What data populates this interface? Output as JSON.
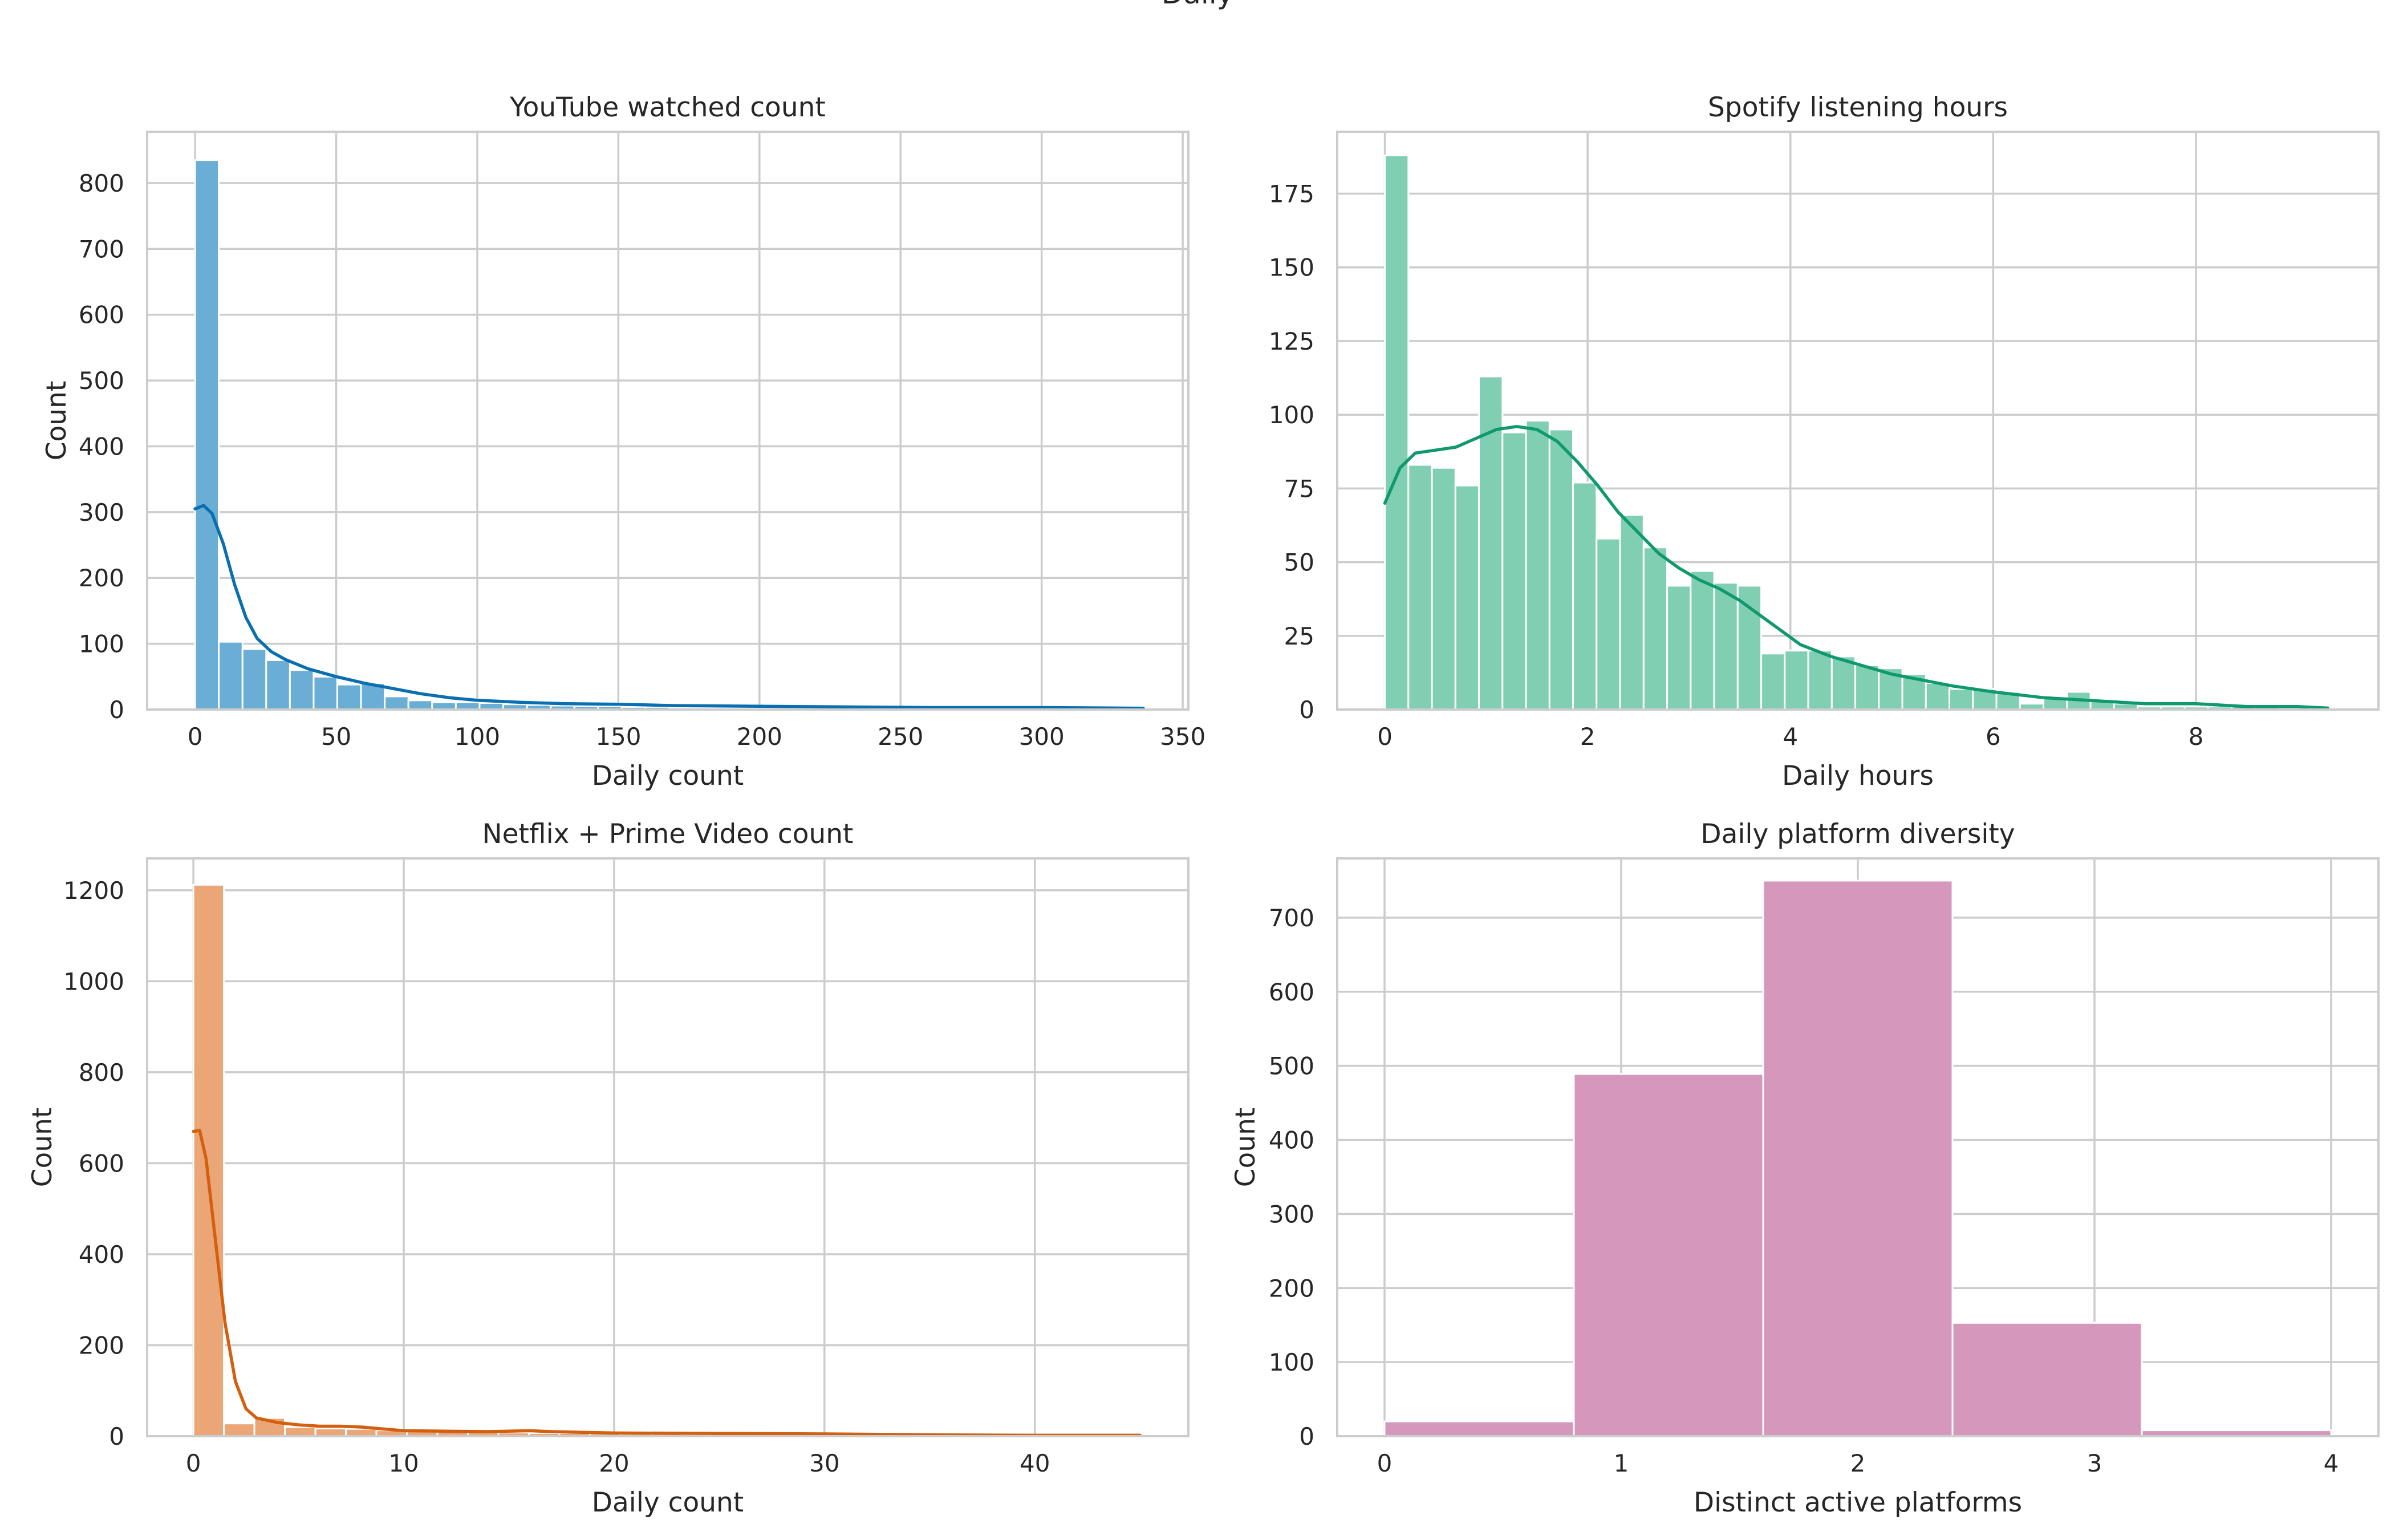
{
  "figure": {
    "suptitle": "Daily"
  },
  "chart_data": [
    {
      "type": "bar",
      "title": "YouTube watched count",
      "xlabel": "Daily count",
      "ylabel": "Count",
      "xlim": [
        -17,
        352
      ],
      "ylim": [
        0,
        878
      ],
      "xticks": [
        0,
        50,
        100,
        150,
        200,
        250,
        300,
        350
      ],
      "yticks": [
        0,
        100,
        200,
        300,
        400,
        500,
        600,
        700,
        800
      ],
      "bin_width": 8.4,
      "bin_start": 0,
      "counts": [
        835,
        103,
        92,
        75,
        60,
        50,
        38,
        40,
        20,
        14,
        11,
        11,
        10,
        8,
        7,
        6,
        5,
        5,
        4,
        4,
        3,
        3,
        3,
        3,
        3,
        3,
        2,
        2,
        2,
        2,
        2,
        2,
        2,
        1,
        1,
        1,
        1,
        1,
        1,
        1
      ],
      "kde": [
        [
          0,
          305
        ],
        [
          3,
          310
        ],
        [
          6,
          298
        ],
        [
          10,
          252
        ],
        [
          14,
          190
        ],
        [
          18,
          140
        ],
        [
          22,
          108
        ],
        [
          27,
          88
        ],
        [
          32,
          76
        ],
        [
          40,
          62
        ],
        [
          50,
          50
        ],
        [
          60,
          40
        ],
        [
          70,
          32
        ],
        [
          80,
          24
        ],
        [
          90,
          18
        ],
        [
          100,
          14
        ],
        [
          115,
          11
        ],
        [
          130,
          9
        ],
        [
          150,
          8
        ],
        [
          170,
          6
        ],
        [
          200,
          5
        ],
        [
          230,
          4
        ],
        [
          260,
          3
        ],
        [
          300,
          3
        ],
        [
          336,
          2
        ]
      ],
      "color": "#6aaed6",
      "line_color": "#0a6fb0"
    },
    {
      "type": "bar",
      "title": "Spotify listening hours",
      "xlabel": "Daily hours",
      "ylabel": "Count",
      "xlim": [
        -0.47,
        9.8
      ],
      "ylim": [
        0,
        196
      ],
      "xticks": [
        0,
        2,
        4,
        6,
        8
      ],
      "yticks": [
        0,
        25,
        50,
        75,
        100,
        125,
        150,
        175
      ],
      "bin_width": 0.232,
      "bin_start": 0,
      "counts": [
        188,
        83,
        82,
        76,
        113,
        94,
        98,
        95,
        77,
        58,
        66,
        55,
        42,
        47,
        43,
        42,
        19,
        20,
        20,
        18,
        15,
        14,
        12,
        9,
        7,
        7,
        6,
        2,
        4,
        6,
        3,
        2,
        1,
        1,
        1,
        1,
        1,
        1,
        0,
        0
      ],
      "kde": [
        [
          0,
          70
        ],
        [
          0.15,
          82
        ],
        [
          0.3,
          87
        ],
        [
          0.5,
          88
        ],
        [
          0.7,
          89
        ],
        [
          0.9,
          92
        ],
        [
          1.1,
          95
        ],
        [
          1.3,
          96
        ],
        [
          1.5,
          95
        ],
        [
          1.7,
          91
        ],
        [
          1.9,
          84
        ],
        [
          2.1,
          76
        ],
        [
          2.3,
          67
        ],
        [
          2.5,
          60
        ],
        [
          2.7,
          53
        ],
        [
          2.9,
          48
        ],
        [
          3.1,
          44
        ],
        [
          3.3,
          41
        ],
        [
          3.5,
          37
        ],
        [
          3.7,
          32
        ],
        [
          3.9,
          27
        ],
        [
          4.1,
          22
        ],
        [
          4.4,
          18
        ],
        [
          4.7,
          15
        ],
        [
          5.0,
          12
        ],
        [
          5.3,
          10
        ],
        [
          5.6,
          8
        ],
        [
          6.0,
          6
        ],
        [
          6.5,
          4
        ],
        [
          7.0,
          3
        ],
        [
          7.5,
          2
        ],
        [
          8.0,
          2
        ],
        [
          8.5,
          1
        ],
        [
          9.0,
          1
        ],
        [
          9.3,
          0.5
        ]
      ],
      "color": "#80cfb2",
      "line_color": "#10996e"
    },
    {
      "type": "bar",
      "title": "Netflix + Prime Video count",
      "xlabel": "Daily count",
      "ylabel": "Count",
      "xlim": [
        -2.2,
        47.3
      ],
      "ylim": [
        0,
        1270
      ],
      "xticks": [
        0,
        10,
        20,
        30,
        40
      ],
      "yticks": [
        0,
        200,
        400,
        600,
        800,
        1000,
        1200
      ],
      "bin_width": 1.45,
      "bin_start": 0,
      "counts": [
        1212,
        28,
        40,
        20,
        17,
        16,
        13,
        11,
        10,
        9,
        8,
        7,
        7,
        6,
        5,
        5,
        4,
        4,
        4,
        3,
        3,
        3,
        2,
        2,
        2,
        2,
        2,
        2,
        2,
        2,
        2
      ],
      "kde": [
        [
          0,
          670
        ],
        [
          0.3,
          672
        ],
        [
          0.6,
          610
        ],
        [
          1.0,
          450
        ],
        [
          1.5,
          250
        ],
        [
          2.0,
          120
        ],
        [
          2.5,
          60
        ],
        [
          3.0,
          40
        ],
        [
          4.0,
          30
        ],
        [
          5.0,
          25
        ],
        [
          6.0,
          22
        ],
        [
          7.0,
          22
        ],
        [
          8.0,
          20
        ],
        [
          9.0,
          16
        ],
        [
          10.0,
          12
        ],
        [
          12.0,
          11
        ],
        [
          14.0,
          10
        ],
        [
          16.0,
          12
        ],
        [
          17.0,
          10
        ],
        [
          20.0,
          7
        ],
        [
          25.0,
          6
        ],
        [
          30.0,
          5
        ],
        [
          35.0,
          3
        ],
        [
          40.0,
          2
        ],
        [
          45.0,
          2
        ]
      ],
      "color": "#eaa676",
      "line_color": "#d35f0f"
    },
    {
      "type": "bar",
      "title": "Daily platform diversity",
      "xlabel": "Distinct active platforms",
      "ylabel": "Count",
      "xlim": [
        -0.2,
        4.2
      ],
      "ylim": [
        0,
        780
      ],
      "xticks": [
        0,
        1,
        2,
        3,
        4
      ],
      "yticks": [
        0,
        100,
        200,
        300,
        400,
        500,
        600,
        700
      ],
      "bin_width": 0.8,
      "bin_start": 0,
      "counts": [
        20,
        489,
        750,
        153,
        8
      ],
      "kde": [],
      "color": "#d697bd",
      "line_color": "#c9749f"
    }
  ]
}
